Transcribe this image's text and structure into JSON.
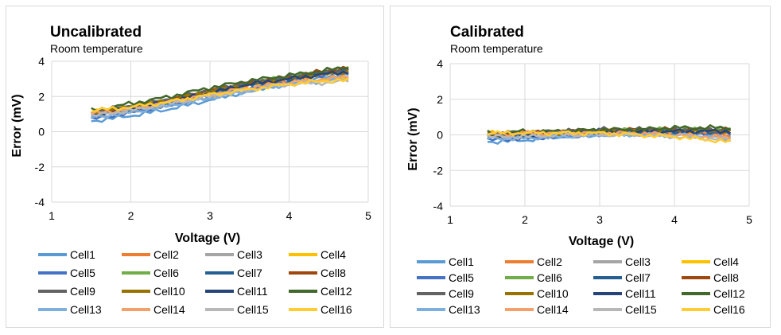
{
  "chart_data": [
    {
      "type": "line",
      "title": "Uncalibrated",
      "subtitle": "Room temperature",
      "xlabel": "Voltage (V)",
      "ylabel": "Error (mV)",
      "xlim": [
        1,
        5
      ],
      "ylim": [
        -4,
        4
      ],
      "xticks": [
        "1",
        "2",
        "3",
        "4",
        "5"
      ],
      "yticks": [
        "4",
        "2",
        "0",
        "-2",
        "-4"
      ],
      "grid": true,
      "legend": "bottom",
      "x": [
        1.5,
        2.0,
        2.5,
        3.0,
        3.5,
        4.0,
        4.5,
        4.75
      ],
      "series": [
        {
          "name": "Cell1",
          "color": "#5b9bd5",
          "values": [
            0.6,
            0.9,
            1.3,
            1.8,
            2.3,
            2.8,
            3.1,
            3.3
          ]
        },
        {
          "name": "Cell2",
          "color": "#ed7d31",
          "values": [
            1.0,
            1.3,
            1.8,
            2.3,
            2.7,
            3.0,
            3.3,
            3.4
          ]
        },
        {
          "name": "Cell3",
          "color": "#a5a5a5",
          "values": [
            0.8,
            1.1,
            1.5,
            2.0,
            2.4,
            2.7,
            3.0,
            3.1
          ]
        },
        {
          "name": "Cell4",
          "color": "#ffc000",
          "values": [
            1.1,
            1.4,
            1.8,
            2.1,
            2.5,
            2.8,
            3.0,
            3.0
          ]
        },
        {
          "name": "Cell5",
          "color": "#4472c4",
          "values": [
            0.7,
            1.1,
            1.5,
            2.0,
            2.5,
            2.9,
            3.3,
            3.4
          ]
        },
        {
          "name": "Cell6",
          "color": "#70ad47",
          "values": [
            1.0,
            1.4,
            1.8,
            2.3,
            2.8,
            3.1,
            3.4,
            3.6
          ]
        },
        {
          "name": "Cell7",
          "color": "#255e91",
          "values": [
            0.9,
            1.3,
            1.7,
            2.2,
            2.7,
            3.0,
            3.4,
            3.5
          ]
        },
        {
          "name": "Cell8",
          "color": "#9e480e",
          "values": [
            1.0,
            1.4,
            1.8,
            2.3,
            2.8,
            3.1,
            3.5,
            3.6
          ]
        },
        {
          "name": "Cell9",
          "color": "#636363",
          "values": [
            1.1,
            1.5,
            1.9,
            2.4,
            2.8,
            3.1,
            3.4,
            3.5
          ]
        },
        {
          "name": "Cell10",
          "color": "#997300",
          "values": [
            1.0,
            1.4,
            1.8,
            2.3,
            2.7,
            3.0,
            3.3,
            3.4
          ]
        },
        {
          "name": "Cell11",
          "color": "#264478",
          "values": [
            0.9,
            1.3,
            1.7,
            2.2,
            2.7,
            3.0,
            3.3,
            3.4
          ]
        },
        {
          "name": "Cell12",
          "color": "#43682b",
          "values": [
            1.2,
            1.6,
            2.0,
            2.5,
            2.9,
            3.2,
            3.5,
            3.7
          ]
        },
        {
          "name": "Cell13",
          "color": "#7cafdd",
          "values": [
            0.8,
            1.1,
            1.5,
            1.9,
            2.3,
            2.7,
            2.9,
            3.0
          ]
        },
        {
          "name": "Cell14",
          "color": "#f4a06a",
          "values": [
            1.0,
            1.3,
            1.7,
            2.1,
            2.5,
            2.8,
            3.0,
            3.1
          ]
        },
        {
          "name": "Cell15",
          "color": "#b7b7b7",
          "values": [
            0.9,
            1.2,
            1.6,
            2.0,
            2.4,
            2.7,
            2.8,
            2.9
          ]
        },
        {
          "name": "Cell16",
          "color": "#ffcd33",
          "values": [
            1.2,
            1.4,
            1.7,
            2.1,
            2.4,
            2.7,
            2.9,
            2.9
          ]
        }
      ]
    },
    {
      "type": "line",
      "title": "Calibrated",
      "subtitle": "Room temperature",
      "xlabel": "Voltage (V)",
      "ylabel": "Error (mV)",
      "xlim": [
        1,
        5
      ],
      "ylim": [
        -4,
        4
      ],
      "xticks": [
        "1",
        "2",
        "3",
        "4",
        "5"
      ],
      "yticks": [
        "4",
        "2",
        "0",
        "-2",
        "-4"
      ],
      "grid": true,
      "legend": "bottom",
      "x": [
        1.5,
        2.0,
        2.5,
        3.0,
        3.5,
        4.0,
        4.5,
        4.75
      ],
      "series": [
        {
          "name": "Cell1",
          "color": "#5b9bd5",
          "values": [
            -0.4,
            -0.3,
            -0.1,
            0.0,
            0.1,
            0.1,
            0.0,
            -0.1
          ]
        },
        {
          "name": "Cell2",
          "color": "#ed7d31",
          "values": [
            0.1,
            0.1,
            0.2,
            0.3,
            0.3,
            0.2,
            0.1,
            0.0
          ]
        },
        {
          "name": "Cell3",
          "color": "#a5a5a5",
          "values": [
            -0.1,
            -0.1,
            0.0,
            0.1,
            0.1,
            0.0,
            -0.1,
            -0.2
          ]
        },
        {
          "name": "Cell4",
          "color": "#ffc000",
          "values": [
            0.1,
            0.1,
            0.2,
            0.2,
            0.1,
            0.0,
            -0.1,
            -0.3
          ]
        },
        {
          "name": "Cell5",
          "color": "#4472c4",
          "values": [
            -0.3,
            -0.2,
            -0.1,
            0.0,
            0.1,
            0.1,
            0.1,
            0.1
          ]
        },
        {
          "name": "Cell6",
          "color": "#70ad47",
          "values": [
            0.0,
            0.1,
            0.2,
            0.2,
            0.3,
            0.3,
            0.3,
            0.3
          ]
        },
        {
          "name": "Cell7",
          "color": "#255e91",
          "values": [
            -0.1,
            0.0,
            0.1,
            0.2,
            0.2,
            0.2,
            0.2,
            0.2
          ]
        },
        {
          "name": "Cell8",
          "color": "#9e480e",
          "values": [
            0.0,
            0.1,
            0.2,
            0.2,
            0.3,
            0.3,
            0.3,
            0.3
          ]
        },
        {
          "name": "Cell9",
          "color": "#636363",
          "values": [
            0.1,
            0.1,
            0.2,
            0.3,
            0.3,
            0.3,
            0.3,
            0.2
          ]
        },
        {
          "name": "Cell10",
          "color": "#997300",
          "values": [
            0.0,
            0.1,
            0.1,
            0.2,
            0.2,
            0.2,
            0.2,
            0.2
          ]
        },
        {
          "name": "Cell11",
          "color": "#264478",
          "values": [
            -0.1,
            0.0,
            0.1,
            0.1,
            0.2,
            0.2,
            0.2,
            0.2
          ]
        },
        {
          "name": "Cell12",
          "color": "#43682b",
          "values": [
            0.1,
            0.2,
            0.2,
            0.3,
            0.3,
            0.4,
            0.4,
            0.4
          ]
        },
        {
          "name": "Cell13",
          "color": "#7cafdd",
          "values": [
            -0.2,
            -0.2,
            -0.1,
            0.0,
            0.0,
            0.0,
            -0.1,
            -0.2
          ]
        },
        {
          "name": "Cell14",
          "color": "#f4a06a",
          "values": [
            0.0,
            0.1,
            0.1,
            0.1,
            0.1,
            0.0,
            -0.1,
            -0.2
          ]
        },
        {
          "name": "Cell15",
          "color": "#b7b7b7",
          "values": [
            -0.1,
            -0.1,
            0.0,
            0.0,
            0.0,
            -0.1,
            -0.2,
            -0.3
          ]
        },
        {
          "name": "Cell16",
          "color": "#ffcd33",
          "values": [
            0.1,
            0.1,
            0.1,
            0.1,
            0.0,
            -0.1,
            -0.3,
            -0.4
          ]
        }
      ]
    }
  ]
}
